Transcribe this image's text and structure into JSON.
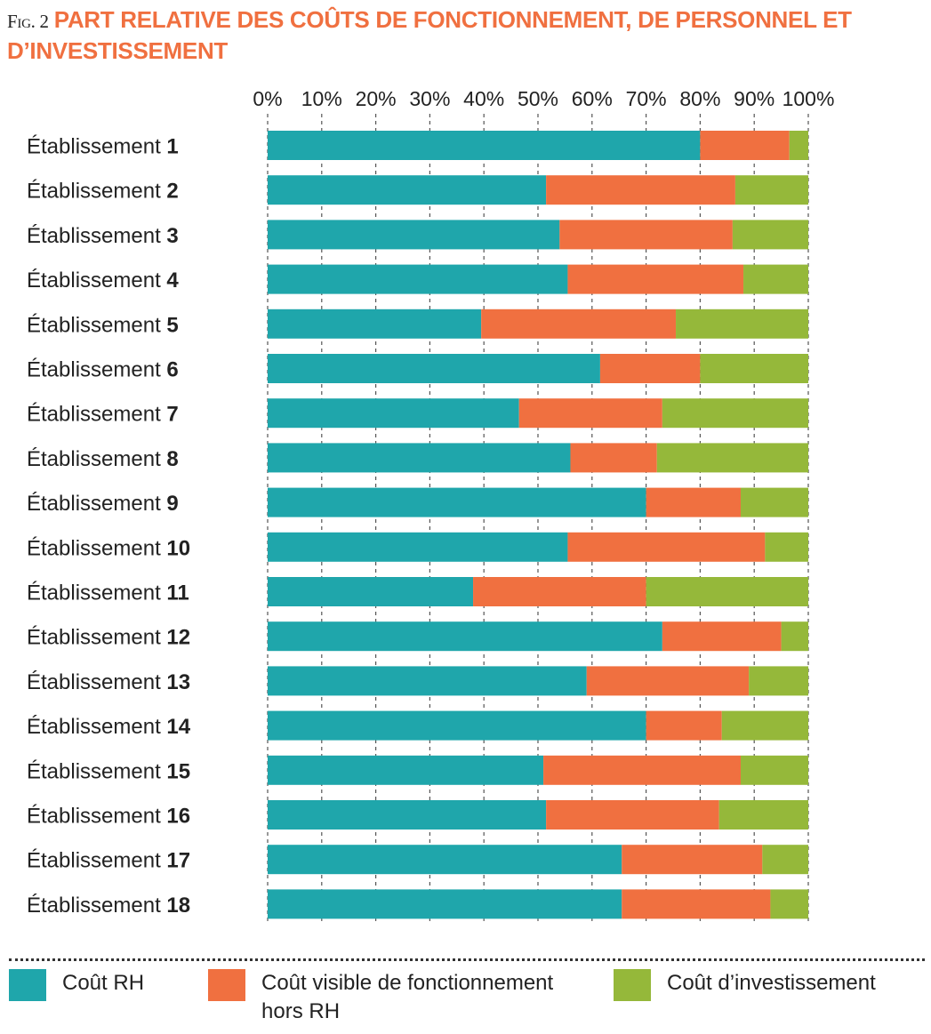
{
  "header": {
    "fig_label": "Fig. 2",
    "title": "PART RELATIVE DES COÛTS DE FONCTIONNEMENT, DE PERSONNEL ET D’INVESTISSEMENT"
  },
  "colors": {
    "rh": "#1fa6ab",
    "fonctionnement": "#f07040",
    "investissement": "#95b83a"
  },
  "legend": [
    {
      "key": "rh",
      "label": "Coût RH"
    },
    {
      "key": "fonctionnement",
      "label": "Coût visible de fonctionnement hors RH"
    },
    {
      "key": "investissement",
      "label": "Coût d’investissement"
    }
  ],
  "chart_data": {
    "type": "bar",
    "orientation": "horizontal",
    "stacked": true,
    "title": "PART RELATIVE DES COÛTS DE FONCTIONNEMENT, DE PERSONNEL ET D’INVESTISSEMENT",
    "category_prefix": "Établissement",
    "categories": [
      "1",
      "2",
      "3",
      "4",
      "5",
      "6",
      "7",
      "8",
      "9",
      "10",
      "11",
      "12",
      "13",
      "14",
      "15",
      "16",
      "17",
      "18"
    ],
    "xlim": [
      0,
      100
    ],
    "x_ticks": [
      0,
      10,
      20,
      30,
      40,
      50,
      60,
      70,
      80,
      90,
      100
    ],
    "tick_suffix": "%",
    "grid": "vertical dashed",
    "legend_position": "bottom",
    "series": [
      {
        "name": "Coût RH",
        "key": "rh",
        "values": [
          80,
          51.5,
          54,
          55.5,
          39.5,
          61.5,
          46.5,
          56,
          70,
          55.5,
          38,
          73,
          59,
          70,
          51,
          51.5,
          65.5,
          65.5
        ]
      },
      {
        "name": "Coût visible de fonctionnement hors RH",
        "key": "fonctionnement",
        "values": [
          16.5,
          35,
          32,
          32.5,
          36,
          18.5,
          26.5,
          16,
          17.5,
          36.5,
          32,
          22,
          30,
          14,
          36.5,
          32,
          26,
          27.5
        ]
      },
      {
        "name": "Coût d’investissement",
        "key": "investissement",
        "values": [
          3.5,
          13.5,
          14,
          12,
          24.5,
          20,
          27,
          28,
          12.5,
          8,
          30,
          5,
          11,
          16,
          12.5,
          16.5,
          8.5,
          7
        ]
      }
    ]
  }
}
